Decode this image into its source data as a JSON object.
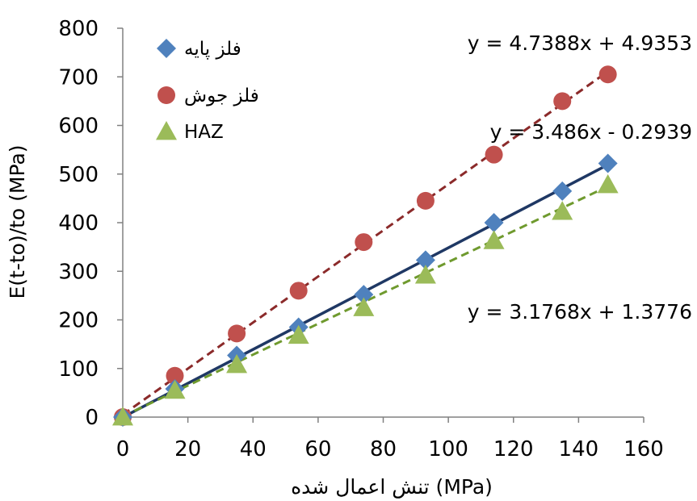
{
  "chart_data": {
    "type": "scatter",
    "xlabel": "(MPa) تنش اعمال شده",
    "ylabel": "E(t-to)/to (MPa)",
    "xlim": [
      0,
      160
    ],
    "ylim": [
      0,
      800
    ],
    "xticks": [
      "0",
      "20",
      "40",
      "60",
      "80",
      "100",
      "120",
      "140",
      "160"
    ],
    "yticks": [
      "0",
      "100",
      "200",
      "300",
      "400",
      "500",
      "600",
      "700",
      "800"
    ],
    "grid": false,
    "legend_position": "top-left",
    "series": [
      {
        "name": "فلز پایه",
        "marker": "diamond",
        "color": "#4f81bd",
        "x": [
          0,
          16,
          35,
          54,
          74,
          93,
          114,
          135,
          149
        ],
        "y": [
          0,
          58,
          127,
          185,
          252,
          323,
          400,
          465,
          522
        ],
        "trendline": {
          "slope": 3.486,
          "intercept": -0.2939,
          "style": "solid",
          "color": "#1f3864",
          "label": "y = 3.486x - 0.2939"
        }
      },
      {
        "name": "فلز جوش",
        "marker": "circle",
        "color": "#c0504d",
        "x": [
          0,
          16,
          35,
          54,
          74,
          93,
          114,
          135,
          149
        ],
        "y": [
          0,
          85,
          172,
          260,
          360,
          445,
          540,
          650,
          705
        ],
        "trendline": {
          "slope": 4.7388,
          "intercept": 4.9353,
          "style": "dashed",
          "color": "#8b2a2a",
          "label": "y = 4.7388x + 4.9353"
        }
      },
      {
        "name": "HAZ",
        "marker": "triangle",
        "color": "#9bbb59",
        "x": [
          0,
          16,
          35,
          54,
          74,
          93,
          114,
          135,
          149
        ],
        "y": [
          0,
          55,
          108,
          168,
          225,
          292,
          363,
          423,
          478
        ],
        "trendline": {
          "slope": 3.1768,
          "intercept": 1.3776,
          "style": "dashed",
          "color": "#6f9a2e",
          "label": "y = 3.1768x + 1.3776"
        }
      }
    ]
  }
}
